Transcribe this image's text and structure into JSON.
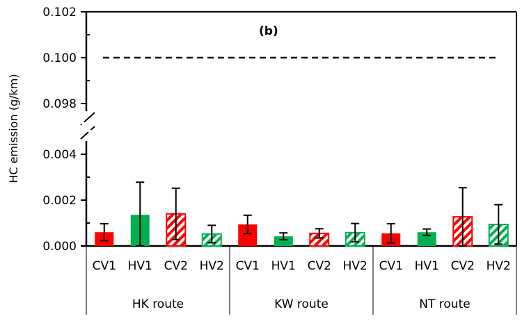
{
  "chart_data": {
    "type": "bar",
    "panel_label": "(b)",
    "ylabel": "HC emission  (g/km)",
    "ylim_lower": [
      0.0,
      0.004
    ],
    "ylim_upper": [
      0.098,
      0.102
    ],
    "axis_break": true,
    "yticks_lower": [
      "0.000",
      "0.002",
      "0.004"
    ],
    "yticks_upper": [
      "0.098",
      "0.100",
      "0.102"
    ],
    "reference_line": {
      "value": 0.1,
      "style": "dashed"
    },
    "groups": [
      "HK route",
      "KW route",
      "NT route"
    ],
    "categories": [
      "CV1",
      "HV1",
      "CV2",
      "HV2"
    ],
    "colors": {
      "CV": "#ff0000",
      "HV": "#00b050"
    },
    "patterns": {
      "CV1": "solid",
      "HV1": "solid",
      "CV2": "hatched",
      "HV2": "hatched"
    },
    "series": [
      {
        "group": "HK route",
        "values": [
          0.0006,
          0.00136,
          0.0014,
          0.00052
        ],
        "errors": [
          0.00037,
          0.00142,
          0.00112,
          0.00038
        ]
      },
      {
        "group": "KW route",
        "values": [
          0.00094,
          0.00042,
          0.00055,
          0.00058
        ],
        "errors": [
          0.0004,
          0.00015,
          0.0002,
          0.0004
        ]
      },
      {
        "group": "NT route",
        "values": [
          0.00055,
          0.0006,
          0.00127,
          0.00094
        ],
        "errors": [
          0.00042,
          0.00014,
          0.00127,
          0.00086
        ]
      }
    ],
    "grid": false
  }
}
